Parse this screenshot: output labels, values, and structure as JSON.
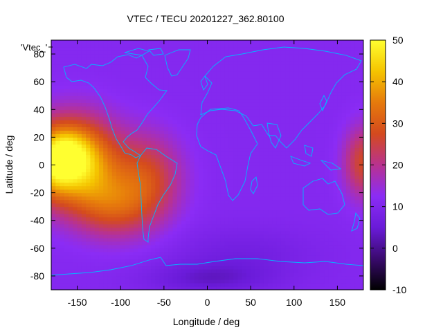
{
  "title": "VTEC / TECU 20201227_362.80100",
  "plot_key_label": "'Vtec_'",
  "axes": {
    "x_label": "Longitude / deg",
    "y_label": "Latitude / deg",
    "x_range": [
      -180,
      180
    ],
    "y_range": [
      -90,
      90
    ],
    "x_ticks": [
      "-150",
      "-100",
      "-50",
      "0",
      "50",
      "100",
      "150"
    ],
    "x_tick_values": [
      -150,
      -100,
      -50,
      0,
      50,
      100,
      150
    ],
    "y_ticks": [
      "80",
      "60",
      "40",
      "20",
      "0",
      "-20",
      "-40",
      "-60",
      "-80"
    ],
    "y_tick_values": [
      80,
      60,
      40,
      20,
      0,
      -20,
      -40,
      -60,
      -80
    ]
  },
  "colorbar": {
    "range": [
      -10,
      50
    ],
    "tick_labels": [
      "50",
      "40",
      "30",
      "20",
      "10",
      "0",
      "-10"
    ],
    "tick_values": [
      50,
      40,
      30,
      20,
      10,
      0,
      -10
    ],
    "stops": [
      "#000000",
      "#3a0a6e",
      "#6a1bd9",
      "#8b2cf5",
      "#b8328f",
      "#d44a1e",
      "#e67a0c",
      "#f5c400",
      "#ffff30"
    ]
  },
  "colors": {
    "background_field": "#8b2cf5",
    "coastline": "#00b8ff",
    "frame": "#000000"
  },
  "chart_data": {
    "type": "heatmap",
    "title": "VTEC / TECU 20201227_362.80100",
    "xlabel": "Longitude / deg",
    "ylabel": "Latitude / deg",
    "xlim": [
      -180,
      180
    ],
    "ylim": [
      -90,
      90
    ],
    "zlim": [
      -10,
      50
    ],
    "background_value": 11,
    "blobs": [
      {
        "lon": -150,
        "lat": 2,
        "sig_lon": 32,
        "sig_lat": 22,
        "amp": 34
      },
      {
        "lon": -160,
        "lat": 8,
        "sig_lon": 16,
        "sig_lat": 12,
        "amp": 10
      },
      {
        "lon": -70,
        "lat": -10,
        "sig_lon": 28,
        "sig_lat": 22,
        "amp": 16
      },
      {
        "lon": -110,
        "lat": -30,
        "sig_lon": 30,
        "sig_lat": 16,
        "amp": 14
      },
      {
        "lon": 180,
        "lat": 2,
        "sig_lon": 16,
        "sig_lat": 18,
        "amp": 16
      },
      {
        "lon": -180,
        "lat": 2,
        "sig_lon": 16,
        "sig_lat": 18,
        "amp": 16
      },
      {
        "lon": 40,
        "lat": -65,
        "sig_lon": 60,
        "sig_lat": 14,
        "amp": -4
      },
      {
        "lon": 0,
        "lat": -82,
        "sig_lon": 50,
        "sig_lat": 8,
        "amp": -6
      }
    ]
  }
}
